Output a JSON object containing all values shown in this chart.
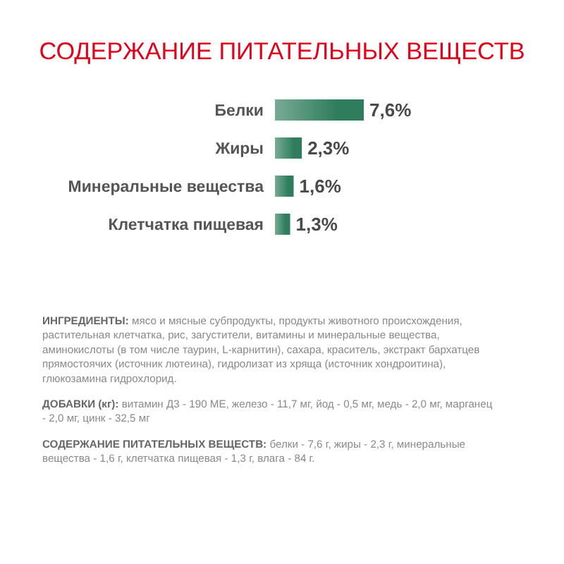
{
  "chart_data": {
    "type": "bar",
    "orientation": "horizontal",
    "title": "СОДЕРЖАНИЕ ПИТАТЕЛЬНЫХ ВЕЩЕСТВ",
    "categories": [
      "Белки",
      "Жиры",
      "Минеральные вещества",
      "Клетчатка пищевая"
    ],
    "values": [
      7.6,
      2.3,
      1.6,
      1.3
    ],
    "value_labels": [
      "7,6%",
      "2,3%",
      "1,6%",
      "1,3%"
    ],
    "color": "#2f7d5c",
    "annotations": [
      "ИНГРЕДИЕНТЫ: мясо и мясные субпродукты, продукты животного происхождения, растительная клетчатка, рис, загустители, витамины и минеральные вещества, аминокислоты (в том числе таурин, L-карнитин), сахара, краситель, экстракт бархатцев прямостоячих (источник лютеина), гидролизат из хряща (источник хондроитина), глюкозамина гидрохлорид.",
      "ДОБАВКИ (кг): витамин Д3 - 190 МЕ, железо - 11,7 мг, йод - 0,5 мг, медь - 2,0 мг, марганец - 2,0 мг, цинк - 32,5 мг",
      "СОДЕРЖАНИЕ ПИТАТЕЛЬНЫХ ВЕЩЕСТВ: белки - 7,6 г, жиры - 2,3 г, минеральные вещества - 1,6 г, клетчатка пищевая - 1,3 г, влага - 84 г."
    ]
  }
}
